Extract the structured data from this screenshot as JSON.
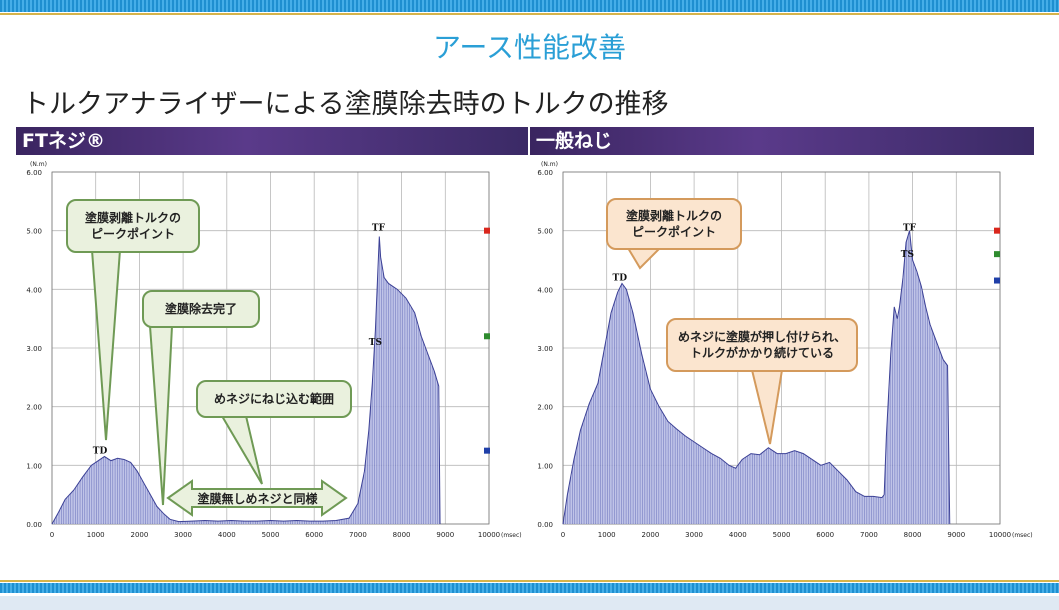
{
  "title": "アース性能改善",
  "subtitle": "トルクアナライザーによる塗膜除去時のトルクの推移",
  "panels": {
    "left_label": "FTネジ®",
    "right_label": "一般ねじ"
  },
  "callouts": {
    "left_peak": "塗膜剥離トルクの\nピークポイント",
    "left_removed": "塗膜除去完了",
    "left_range": "めネジにねじ込む範囲",
    "left_same": "塗膜無しめネジと同様",
    "right_peak": "塗膜剥離トルクの\nピークポイント",
    "right_pressed": "めネジに塗膜が押し付けられ、\nトルクがかかり続けている"
  },
  "colors": {
    "fill": "#7f86c8",
    "line": "#3c4196",
    "marker_red": "#d9261c",
    "marker_green": "#2e8b2e",
    "marker_blue": "#1f3fa8"
  },
  "chart_data": [
    {
      "type": "area",
      "title": "FTネジ®",
      "ylabel": "(N.m)",
      "xlabel": "(msec)",
      "xlim": [
        0,
        10000
      ],
      "ylim": [
        0,
        6
      ],
      "y_ticks": [
        "0.00",
        "1.00",
        "2.00",
        "3.00",
        "4.00",
        "5.00",
        "6.00"
      ],
      "x_ticks": [
        "0",
        "1000",
        "2000",
        "3000",
        "4000",
        "5000",
        "6000",
        "7000",
        "8000",
        "9000",
        "10000"
      ],
      "annotations": [
        {
          "label": "TD",
          "x": 1100,
          "y": 1.15
        },
        {
          "label": "TF",
          "x": 7470,
          "y": 4.95
        },
        {
          "label": "TS",
          "x": 7400,
          "y": 3.0
        }
      ],
      "series": [
        {
          "values": [
            [
              0,
              0
            ],
            [
              150,
              0.2
            ],
            [
              300,
              0.42
            ],
            [
              500,
              0.58
            ],
            [
              700,
              0.8
            ],
            [
              900,
              1.0
            ],
            [
              1000,
              1.05
            ],
            [
              1100,
              1.1
            ],
            [
              1200,
              1.15
            ],
            [
              1350,
              1.08
            ],
            [
              1500,
              1.12
            ],
            [
              1650,
              1.1
            ],
            [
              1800,
              1.05
            ],
            [
              1950,
              0.9
            ],
            [
              2100,
              0.7
            ],
            [
              2250,
              0.5
            ],
            [
              2400,
              0.3
            ],
            [
              2550,
              0.18
            ],
            [
              2700,
              0.08
            ],
            [
              2900,
              0.04
            ],
            [
              3200,
              0.05
            ],
            [
              3500,
              0.06
            ],
            [
              3800,
              0.05
            ],
            [
              4100,
              0.06
            ],
            [
              4400,
              0.05
            ],
            [
              4700,
              0.05
            ],
            [
              5000,
              0.06
            ],
            [
              5300,
              0.05
            ],
            [
              5600,
              0.06
            ],
            [
              5900,
              0.05
            ],
            [
              6200,
              0.05
            ],
            [
              6500,
              0.06
            ],
            [
              6800,
              0.1
            ],
            [
              7000,
              0.35
            ],
            [
              7150,
              0.9
            ],
            [
              7250,
              1.6
            ],
            [
              7330,
              2.4
            ],
            [
              7400,
              3.3
            ],
            [
              7450,
              4.2
            ],
            [
              7490,
              4.9
            ],
            [
              7520,
              4.55
            ],
            [
              7600,
              4.2
            ],
            [
              7700,
              4.1
            ],
            [
              7900,
              4.0
            ],
            [
              8100,
              3.85
            ],
            [
              8300,
              3.6
            ],
            [
              8450,
              3.2
            ],
            [
              8600,
              2.9
            ],
            [
              8750,
              2.6
            ],
            [
              8850,
              2.35
            ],
            [
              8880,
              0
            ]
          ]
        }
      ],
      "markers": [
        {
          "color": "red",
          "y": 5.0
        },
        {
          "color": "green",
          "y": 3.2
        },
        {
          "color": "blue",
          "y": 1.25
        }
      ]
    },
    {
      "type": "area",
      "title": "一般ねじ",
      "ylabel": "(N.m)",
      "xlabel": "(msec)",
      "xlim": [
        0,
        10000
      ],
      "ylim": [
        0,
        6
      ],
      "y_ticks": [
        "0.00",
        "1.00",
        "2.00",
        "3.00",
        "4.00",
        "5.00",
        "6.00"
      ],
      "x_ticks": [
        "0",
        "1000",
        "2000",
        "3000",
        "4000",
        "5000",
        "6000",
        "7000",
        "8000",
        "9000",
        "10000"
      ],
      "annotations": [
        {
          "label": "TD",
          "x": 1300,
          "y": 4.1
        },
        {
          "label": "TF",
          "x": 7930,
          "y": 4.95
        },
        {
          "label": "TS",
          "x": 7880,
          "y": 4.5
        }
      ],
      "series": [
        {
          "values": [
            [
              0,
              0
            ],
            [
              100,
              0.5
            ],
            [
              250,
              1.1
            ],
            [
              400,
              1.6
            ],
            [
              600,
              2.05
            ],
            [
              800,
              2.4
            ],
            [
              950,
              3.0
            ],
            [
              1100,
              3.6
            ],
            [
              1250,
              3.95
            ],
            [
              1350,
              4.1
            ],
            [
              1450,
              4.0
            ],
            [
              1600,
              3.6
            ],
            [
              1800,
              2.9
            ],
            [
              2000,
              2.3
            ],
            [
              2200,
              2.0
            ],
            [
              2400,
              1.75
            ],
            [
              2600,
              1.62
            ],
            [
              2800,
              1.5
            ],
            [
              3000,
              1.4
            ],
            [
              3200,
              1.3
            ],
            [
              3400,
              1.2
            ],
            [
              3600,
              1.12
            ],
            [
              3800,
              1.0
            ],
            [
              3950,
              0.95
            ],
            [
              4100,
              1.1
            ],
            [
              4300,
              1.2
            ],
            [
              4500,
              1.18
            ],
            [
              4700,
              1.3
            ],
            [
              4900,
              1.2
            ],
            [
              5100,
              1.2
            ],
            [
              5300,
              1.25
            ],
            [
              5500,
              1.2
            ],
            [
              5700,
              1.1
            ],
            [
              5900,
              1.0
            ],
            [
              6100,
              1.05
            ],
            [
              6300,
              0.9
            ],
            [
              6500,
              0.75
            ],
            [
              6700,
              0.55
            ],
            [
              6900,
              0.47
            ],
            [
              7100,
              0.47
            ],
            [
              7300,
              0.45
            ],
            [
              7350,
              0.5
            ],
            [
              7400,
              1.5
            ],
            [
              7500,
              2.9
            ],
            [
              7580,
              3.7
            ],
            [
              7650,
              3.5
            ],
            [
              7700,
              3.7
            ],
            [
              7780,
              4.2
            ],
            [
              7850,
              4.8
            ],
            [
              7930,
              5.0
            ],
            [
              8000,
              4.5
            ],
            [
              8100,
              4.3
            ],
            [
              8200,
              4.05
            ],
            [
              8300,
              3.7
            ],
            [
              8400,
              3.4
            ],
            [
              8500,
              3.2
            ],
            [
              8600,
              3.0
            ],
            [
              8700,
              2.8
            ],
            [
              8800,
              2.7
            ],
            [
              8850,
              0
            ]
          ]
        }
      ],
      "markers": [
        {
          "color": "red",
          "y": 5.0
        },
        {
          "color": "green",
          "y": 4.6
        },
        {
          "color": "blue",
          "y": 4.15
        }
      ]
    }
  ]
}
